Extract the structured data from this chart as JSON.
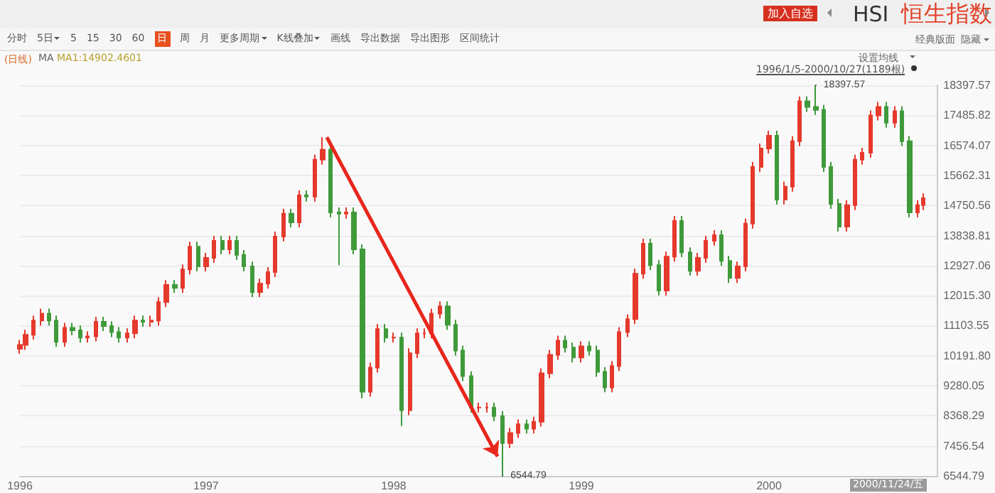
{
  "chart_data": {
    "type": "candlestick",
    "title": "恒生指数",
    "annotations": [
      "分时",
      "5日",
      "5",
      "15",
      "30",
      "60",
      "日",
      "周",
      "月",
      "更多周期",
      "K线叠加",
      "画线",
      "导出数据",
      "导出图形",
      "区间统计",
      "(日线)",
      "MA",
      "MA1:14902.4601",
      "加入自选",
      "HSI",
      "经典版面",
      "隐藏",
      "设置均线",
      "1996/1/5-2000/10/27(1189根)",
      "2000/11/24/五",
      {
        "text": "18397.57",
        "x": "2000-04-01",
        "y": 18397.57
      },
      {
        "text": "6544.79",
        "x": "1998-08-01",
        "y": 6544.79
      }
    ],
    "x": [
      "1996-01-05",
      "1996-01-16",
      "1996-02-01",
      "1996-02-16",
      "1996-03-01",
      "1996-03-16",
      "1996-04-01",
      "1996-04-16",
      "1996-05-01",
      "1996-05-16",
      "1996-06-01",
      "1996-06-16",
      "1996-07-01",
      "1996-07-16",
      "1996-08-01",
      "1996-08-16",
      "1996-09-01",
      "1996-09-16",
      "1996-10-01",
      "1996-10-16",
      "1996-11-01",
      "1996-11-16",
      "1996-12-01",
      "1996-12-16",
      "1997-01-01",
      "1997-01-16",
      "1997-02-01",
      "1997-02-16",
      "1997-03-01",
      "1997-03-16",
      "1997-04-01",
      "1997-04-16",
      "1997-05-01",
      "1997-05-16",
      "1997-06-01",
      "1997-06-16",
      "1997-07-01",
      "1997-07-16",
      "1997-08-01",
      "1997-08-16",
      "1997-09-01",
      "1997-09-16",
      "1997-10-01",
      "1997-10-16",
      "1997-11-01",
      "1997-11-16",
      "1997-12-01",
      "1997-12-16",
      "1998-01-01",
      "1998-01-16",
      "1998-02-01",
      "1998-02-16",
      "1998-03-01",
      "1998-03-16",
      "1998-04-01",
      "1998-04-16",
      "1998-05-01",
      "1998-05-16",
      "1998-06-01",
      "1998-06-16",
      "1998-07-01",
      "1998-07-16",
      "1998-08-01",
      "1998-08-16",
      "1998-09-01",
      "1998-09-16",
      "1998-10-01",
      "1998-10-16",
      "1998-11-01",
      "1998-11-16",
      "1998-12-01",
      "1998-12-16",
      "1999-01-01",
      "1999-01-16",
      "1999-02-01",
      "1999-02-16",
      "1999-03-01",
      "1999-03-16",
      "1999-04-01",
      "1999-04-16",
      "1999-05-01",
      "1999-05-16",
      "1999-06-01",
      "1999-06-16",
      "1999-07-01",
      "1999-07-16",
      "1999-08-01",
      "1999-08-16",
      "1999-09-01",
      "1999-09-16",
      "1999-10-01",
      "1999-10-16",
      "1999-11-01",
      "1999-11-16",
      "1999-12-01",
      "1999-12-16",
      "2000-01-01",
      "2000-01-16",
      "2000-02-01",
      "2000-02-16",
      "2000-03-01",
      "2000-03-16",
      "2000-04-01",
      "2000-04-16",
      "2000-05-01",
      "2000-05-16",
      "2000-06-01",
      "2000-06-16",
      "2000-07-01",
      "2000-07-16",
      "2000-08-01",
      "2000-08-16",
      "2000-09-01",
      "2000-09-16",
      "2000-10-01",
      "2000-10-16",
      "2000-10-27"
    ],
    "ohlc": [
      [
        10400,
        10670,
        10250,
        10520
      ],
      [
        10520,
        10980,
        10370,
        10830
      ],
      [
        10830,
        11410,
        10680,
        11260
      ],
      [
        11260,
        11620,
        11110,
        11470
      ],
      [
        11470,
        11620,
        11110,
        11260
      ],
      [
        11260,
        11410,
        10460,
        10610
      ],
      [
        10610,
        11190,
        10460,
        11040
      ],
      [
        11040,
        11190,
        10810,
        10960
      ],
      [
        10960,
        11110,
        10590,
        10740
      ],
      [
        10740,
        10930,
        10590,
        10780
      ],
      [
        10780,
        11370,
        10630,
        11220
      ],
      [
        11220,
        11370,
        10940,
        11090
      ],
      [
        11090,
        11240,
        10760,
        10910
      ],
      [
        10910,
        11060,
        10590,
        10740
      ],
      [
        10740,
        11020,
        10590,
        10870
      ],
      [
        10870,
        11410,
        10720,
        11260
      ],
      [
        11260,
        11410,
        11070,
        11220
      ],
      [
        11220,
        11410,
        11070,
        11260
      ],
      [
        11260,
        11970,
        11110,
        11820
      ],
      [
        11820,
        12490,
        11670,
        12340
      ],
      [
        12340,
        12490,
        12100,
        12250
      ],
      [
        12250,
        12960,
        12100,
        12810
      ],
      [
        12810,
        13650,
        12660,
        13500
      ],
      [
        13500,
        13650,
        12750,
        12900
      ],
      [
        12900,
        13310,
        12750,
        13160
      ],
      [
        13160,
        13830,
        13010,
        13680
      ],
      [
        13680,
        13830,
        13270,
        13420
      ],
      [
        13420,
        13830,
        13270,
        13680
      ],
      [
        13680,
        13830,
        13100,
        13250
      ],
      [
        13250,
        13400,
        12750,
        12900
      ],
      [
        12900,
        13050,
        11970,
        12120
      ],
      [
        12120,
        12530,
        11970,
        12380
      ],
      [
        12380,
        12880,
        12230,
        12730
      ],
      [
        12730,
        13960,
        12580,
        13810
      ],
      [
        13810,
        14650,
        13660,
        14500
      ],
      [
        14500,
        14650,
        14090,
        14240
      ],
      [
        14240,
        15210,
        14090,
        15060
      ],
      [
        15060,
        15210,
        14870,
        15020
      ],
      [
        15020,
        16290,
        14870,
        16140
      ],
      [
        16140,
        16820,
        15990,
        16440
      ],
      [
        16440,
        16590,
        14390,
        14540
      ],
      [
        14540,
        14690,
        12940,
        14500
      ],
      [
        14500,
        14690,
        14350,
        14540
      ],
      [
        14540,
        14690,
        13270,
        13420
      ],
      [
        13420,
        13570,
        8900,
        9100
      ],
      [
        9100,
        9980,
        8950,
        9830
      ],
      [
        9830,
        11150,
        9680,
        11000
      ],
      [
        11000,
        11150,
        10590,
        10740
      ],
      [
        10740,
        10890,
        10590,
        10740
      ],
      [
        10740,
        10890,
        8060,
        8540
      ],
      [
        8540,
        10420,
        8390,
        10270
      ],
      [
        10270,
        11020,
        10120,
        10870
      ],
      [
        10870,
        11020,
        10720,
        10870
      ],
      [
        10870,
        11620,
        10720,
        11470
      ],
      [
        11470,
        11840,
        11320,
        11690
      ],
      [
        11690,
        11840,
        10980,
        11130
      ],
      [
        11130,
        11280,
        10200,
        10350
      ],
      [
        10350,
        10500,
        9420,
        9570
      ],
      [
        9570,
        9720,
        8470,
        8620
      ],
      [
        8620,
        8770,
        8470,
        8620
      ],
      [
        8620,
        8770,
        8470,
        8620
      ],
      [
        8620,
        8770,
        8210,
        8360
      ],
      [
        8360,
        8510,
        6544.79,
        7540
      ],
      [
        7540,
        8000,
        7390,
        7850
      ],
      [
        7850,
        8260,
        7700,
        8110
      ],
      [
        8110,
        8260,
        7830,
        7980
      ],
      [
        7980,
        8340,
        7830,
        8190
      ],
      [
        8190,
        9810,
        8040,
        9660
      ],
      [
        9660,
        10370,
        9510,
        10220
      ],
      [
        10220,
        10800,
        10070,
        10650
      ],
      [
        10650,
        10800,
        10290,
        10440
      ],
      [
        10440,
        10590,
        9990,
        10140
      ],
      [
        10140,
        10630,
        9990,
        10480
      ],
      [
        10480,
        10630,
        10200,
        10350
      ],
      [
        10350,
        10500,
        9550,
        9700
      ],
      [
        9700,
        9850,
        9080,
        9230
      ],
      [
        9230,
        10030,
        9080,
        9880
      ],
      [
        9880,
        11060,
        9730,
        10910
      ],
      [
        10910,
        11450,
        10760,
        11300
      ],
      [
        11300,
        12830,
        11150,
        12680
      ],
      [
        12680,
        13740,
        12530,
        13590
      ],
      [
        13590,
        13740,
        12790,
        12940
      ],
      [
        12940,
        13090,
        12020,
        12170
      ],
      [
        12170,
        13350,
        12020,
        13200
      ],
      [
        13200,
        14430,
        13050,
        14280
      ],
      [
        14280,
        14430,
        13180,
        13330
      ],
      [
        13330,
        13480,
        12620,
        12770
      ],
      [
        12770,
        13310,
        12620,
        13160
      ],
      [
        13160,
        13830,
        13010,
        13680
      ],
      [
        13680,
        14000,
        13530,
        13850
      ],
      [
        13850,
        14000,
        12920,
        13070
      ],
      [
        13070,
        13220,
        12400,
        12550
      ],
      [
        12550,
        13050,
        12400,
        12900
      ],
      [
        12900,
        14350,
        12750,
        14200
      ],
      [
        14200,
        16070,
        14050,
        15920
      ],
      [
        15920,
        16630,
        15770,
        16480
      ],
      [
        16480,
        17020,
        16330,
        16870
      ],
      [
        16870,
        17020,
        14780,
        14930
      ],
      [
        14930,
        15470,
        14780,
        15320
      ],
      [
        15320,
        16850,
        15170,
        16700
      ],
      [
        16700,
        18060,
        16550,
        17910
      ],
      [
        17910,
        18060,
        17590,
        17740
      ],
      [
        17740,
        18397.57,
        17500,
        17650
      ],
      [
        17650,
        17800,
        15770,
        15920
      ],
      [
        15920,
        16070,
        14650,
        14800
      ],
      [
        14800,
        14950,
        13960,
        14110
      ],
      [
        14110,
        14910,
        13960,
        14760
      ],
      [
        14760,
        16290,
        14610,
        16140
      ],
      [
        16140,
        16500,
        15990,
        16350
      ],
      [
        16350,
        17630,
        16200,
        17480
      ],
      [
        17480,
        17890,
        17330,
        17740
      ],
      [
        17740,
        17890,
        17110,
        17260
      ],
      [
        17260,
        17760,
        17110,
        17610
      ],
      [
        17610,
        17760,
        16550,
        16700
      ],
      [
        16700,
        16850,
        14390,
        14540
      ],
      [
        14540,
        14910,
        14390,
        14760
      ],
      [
        14760,
        15120,
        14610,
        14970
      ]
    ],
    "xlim": [
      "1996-01-05",
      "2000-11-24"
    ],
    "xticks": [
      {
        "value": "1996-01-05",
        "label": "1996"
      },
      {
        "value": "1997-01-01",
        "label": "1997"
      },
      {
        "value": "1998-01-01",
        "label": "1998"
      },
      {
        "value": "1999-01-01",
        "label": "1999"
      },
      {
        "value": "2000-01-01",
        "label": "2000"
      }
    ],
    "ylim": [
      6544.79,
      18397.57
    ],
    "yticks": [
      18397.57,
      17485.82,
      16574.07,
      15662.31,
      14750.56,
      13838.81,
      12927.06,
      {
        "value": 12015.3,
        "label": "12015.30"
      },
      11103.55,
      {
        "value": 10191.8,
        "label": "10191.80"
      },
      9280.05,
      8368.29,
      7456.54,
      6544.79
    ],
    "grid": "y"
  }
}
